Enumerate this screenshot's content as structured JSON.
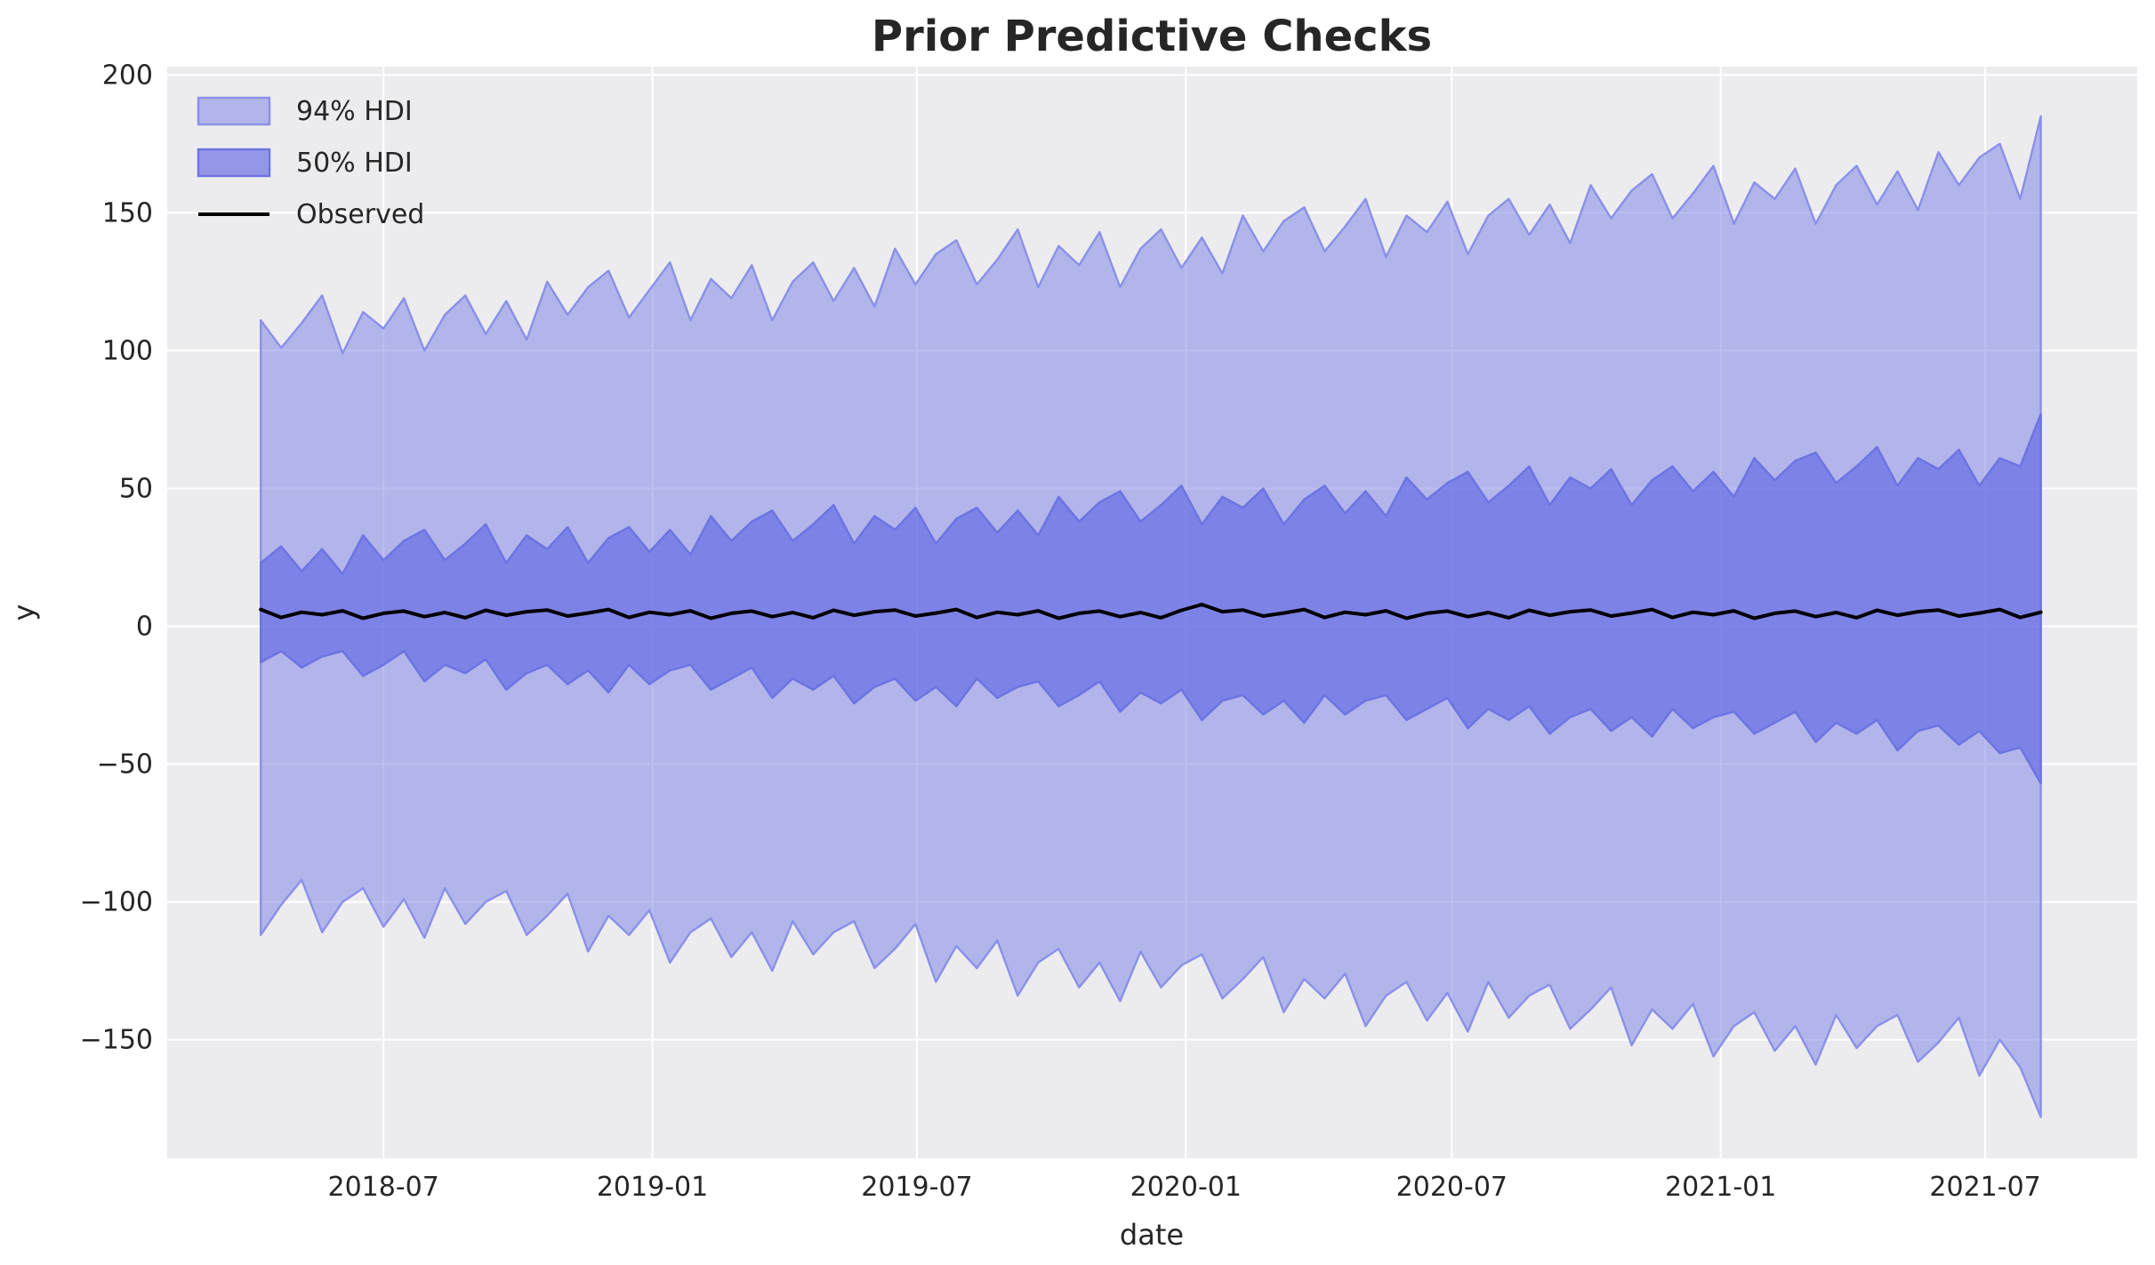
{
  "figure": {
    "title": "Prior Predictive Checks",
    "colors": {
      "figure_background": "#ffffff",
      "axes_background": "#ececef",
      "grid": "#ffffff",
      "text": "#262626",
      "hdi94_fill": "rgba(130,136,228,0.55)",
      "hdi94_edge": "#8a90e9",
      "hdi50_fill": "rgba(93,99,227,0.62)",
      "hdi50_edge": "#6c73e3",
      "observed_line": "#000000",
      "legend_hdi94_swatch_fill": "rgba(130,136,228,0.55)",
      "legend_hdi50_swatch_fill": "rgba(93,99,227,0.62)"
    }
  },
  "legend": {
    "items": [
      {
        "label": "94% HDI",
        "type": "patch",
        "series": "hdi94"
      },
      {
        "label": "50% HDI",
        "type": "patch",
        "series": "hdi50"
      },
      {
        "label": "Observed",
        "type": "line",
        "series": "observed"
      }
    ]
  },
  "chart_data": {
    "type": "area",
    "title": "Prior Predictive Checks",
    "xlabel": "date",
    "ylabel": "y",
    "grid": true,
    "legend_position": "upper left",
    "x_domain": [
      "2018-02-03",
      "2021-10-13"
    ],
    "ylim": [
      -193,
      203
    ],
    "x_ticks": [
      {
        "value": "2018-07-01",
        "label": "2018-07"
      },
      {
        "value": "2019-01-01",
        "label": "2019-01"
      },
      {
        "value": "2019-07-01",
        "label": "2019-07"
      },
      {
        "value": "2020-01-01",
        "label": "2020-01"
      },
      {
        "value": "2020-07-01",
        "label": "2020-07"
      },
      {
        "value": "2021-01-01",
        "label": "2021-01"
      },
      {
        "value": "2021-07-01",
        "label": "2021-07"
      }
    ],
    "y_ticks": [
      {
        "value": 200,
        "label": "200"
      },
      {
        "value": 150,
        "label": "150"
      },
      {
        "value": 100,
        "label": "100"
      },
      {
        "value": 50,
        "label": "50"
      },
      {
        "value": 0,
        "label": "0"
      },
      {
        "value": -50,
        "label": "−50"
      },
      {
        "value": -100,
        "label": "−100"
      },
      {
        "value": -150,
        "label": "−150"
      }
    ],
    "x": [
      "2018-04-08",
      "2018-04-22",
      "2018-05-06",
      "2018-05-20",
      "2018-06-03",
      "2018-06-17",
      "2018-07-01",
      "2018-07-15",
      "2018-07-29",
      "2018-08-12",
      "2018-08-26",
      "2018-09-09",
      "2018-09-23",
      "2018-10-07",
      "2018-10-21",
      "2018-11-04",
      "2018-11-18",
      "2018-12-02",
      "2018-12-16",
      "2018-12-30",
      "2019-01-13",
      "2019-01-27",
      "2019-02-10",
      "2019-02-24",
      "2019-03-10",
      "2019-03-24",
      "2019-04-07",
      "2019-04-21",
      "2019-05-05",
      "2019-05-19",
      "2019-06-02",
      "2019-06-16",
      "2019-06-30",
      "2019-07-14",
      "2019-07-28",
      "2019-08-11",
      "2019-08-25",
      "2019-09-08",
      "2019-09-22",
      "2019-10-06",
      "2019-10-20",
      "2019-11-03",
      "2019-11-17",
      "2019-12-01",
      "2019-12-15",
      "2019-12-29",
      "2020-01-12",
      "2020-01-26",
      "2020-02-09",
      "2020-02-23",
      "2020-03-08",
      "2020-03-22",
      "2020-04-05",
      "2020-04-19",
      "2020-05-03",
      "2020-05-17",
      "2020-05-31",
      "2020-06-14",
      "2020-06-28",
      "2020-07-12",
      "2020-07-26",
      "2020-08-09",
      "2020-08-23",
      "2020-09-06",
      "2020-09-20",
      "2020-10-04",
      "2020-10-18",
      "2020-11-01",
      "2020-11-15",
      "2020-11-29",
      "2020-12-13",
      "2020-12-27",
      "2021-01-10",
      "2021-01-24",
      "2021-02-07",
      "2021-02-21",
      "2021-03-07",
      "2021-03-21",
      "2021-04-04",
      "2021-04-18",
      "2021-05-02",
      "2021-05-16",
      "2021-05-30",
      "2021-06-13",
      "2021-06-27",
      "2021-07-11",
      "2021-07-25",
      "2021-08-08"
    ],
    "series": [
      {
        "name": "94% HDI",
        "kind": "band",
        "upper": [
          111,
          101,
          110,
          120,
          99,
          114,
          108,
          119,
          100,
          113,
          120,
          106,
          118,
          104,
          125,
          113,
          123,
          129,
          112,
          122,
          132,
          111,
          126,
          119,
          131,
          111,
          125,
          132,
          118,
          130,
          116,
          137,
          124,
          135,
          140,
          124,
          133,
          144,
          123,
          138,
          131,
          143,
          123,
          137,
          144,
          130,
          141,
          128,
          149,
          136,
          147,
          152,
          136,
          145,
          155,
          134,
          149,
          143,
          154,
          135,
          149,
          155,
          142,
          153,
          139,
          160,
          148,
          158,
          164,
          148,
          157,
          167,
          146,
          161,
          155,
          166,
          146,
          160,
          167,
          153,
          165,
          151,
          172,
          160,
          170,
          175,
          155,
          185
        ],
        "lower": [
          -112,
          -101,
          -92,
          -111,
          -100,
          -95,
          -109,
          -99,
          -113,
          -95,
          -108,
          -100,
          -96,
          -112,
          -105,
          -97,
          -118,
          -105,
          -112,
          -103,
          -122,
          -111,
          -106,
          -120,
          -111,
          -125,
          -107,
          -119,
          -111,
          -107,
          -124,
          -117,
          -108,
          -129,
          -116,
          -124,
          -114,
          -134,
          -122,
          -117,
          -131,
          -122,
          -136,
          -118,
          -131,
          -123,
          -119,
          -135,
          -128,
          -120,
          -140,
          -128,
          -135,
          -126,
          -145,
          -134,
          -129,
          -143,
          -133,
          -147,
          -129,
          -142,
          -134,
          -130,
          -146,
          -139,
          -131,
          -152,
          -139,
          -146,
          -137,
          -156,
          -145,
          -140,
          -154,
          -145,
          -159,
          -141,
          -153,
          -145,
          -141,
          -158,
          -151,
          -142,
          -163,
          -150,
          -160,
          -178
        ]
      },
      {
        "name": "50% HDI",
        "kind": "band",
        "upper": [
          23,
          29,
          20,
          28,
          19,
          33,
          24,
          31,
          35,
          24,
          30,
          37,
          23,
          33,
          28,
          36,
          23,
          32,
          36,
          27,
          35,
          26,
          40,
          31,
          38,
          42,
          31,
          37,
          44,
          30,
          40,
          35,
          43,
          30,
          39,
          43,
          34,
          42,
          33,
          47,
          38,
          45,
          49,
          38,
          44,
          51,
          37,
          47,
          43,
          50,
          37,
          46,
          51,
          41,
          49,
          40,
          54,
          46,
          52,
          56,
          45,
          51,
          58,
          44,
          54,
          50,
          57,
          44,
          53,
          58,
          49,
          56,
          47,
          61,
          53,
          60,
          63,
          52,
          58,
          65,
          51,
          61,
          57,
          64,
          51,
          61,
          58,
          77
        ],
        "lower": [
          -13,
          -9,
          -15,
          -11,
          -9,
          -18,
          -14,
          -9,
          -20,
          -14,
          -17,
          -12,
          -23,
          -17,
          -14,
          -21,
          -16,
          -24,
          -14,
          -21,
          -16,
          -14,
          -23,
          -19,
          -15,
          -26,
          -19,
          -23,
          -18,
          -28,
          -22,
          -19,
          -27,
          -22,
          -29,
          -19,
          -26,
          -22,
          -20,
          -29,
          -25,
          -20,
          -31,
          -24,
          -28,
          -23,
          -34,
          -27,
          -25,
          -32,
          -27,
          -35,
          -25,
          -32,
          -27,
          -25,
          -34,
          -30,
          -26,
          -37,
          -30,
          -34,
          -29,
          -39,
          -33,
          -30,
          -38,
          -33,
          -40,
          -30,
          -37,
          -33,
          -31,
          -39,
          -35,
          -31,
          -42,
          -35,
          -39,
          -34,
          -45,
          -38,
          -36,
          -43,
          -38,
          -46,
          -44,
          -57
        ]
      },
      {
        "name": "Observed",
        "kind": "line",
        "values": [
          6.1,
          3.2,
          5.1,
          4.2,
          5.6,
          2.9,
          4.7,
          5.5,
          3.5,
          5.0,
          3.1,
          5.8,
          4.0,
          5.3,
          5.9,
          3.7,
          4.8,
          6.1,
          3.2,
          5.1,
          4.2,
          5.6,
          2.9,
          4.7,
          5.5,
          3.5,
          5.0,
          3.1,
          5.8,
          4.0,
          5.3,
          5.9,
          3.7,
          4.8,
          6.1,
          3.2,
          5.1,
          4.2,
          5.6,
          2.9,
          4.7,
          5.5,
          3.5,
          5.0,
          3.1,
          5.8,
          7.9,
          5.3,
          5.9,
          3.7,
          4.8,
          6.1,
          3.2,
          5.1,
          4.2,
          5.6,
          2.9,
          4.7,
          5.5,
          3.5,
          5.0,
          3.1,
          5.8,
          4.0,
          5.3,
          5.9,
          3.7,
          4.8,
          6.1,
          3.2,
          5.1,
          4.2,
          5.6,
          2.9,
          4.7,
          5.5,
          3.5,
          5.0,
          3.1,
          5.8,
          4.0,
          5.3,
          5.9,
          3.7,
          4.8,
          6.1,
          3.2,
          5.1
        ]
      }
    ]
  }
}
